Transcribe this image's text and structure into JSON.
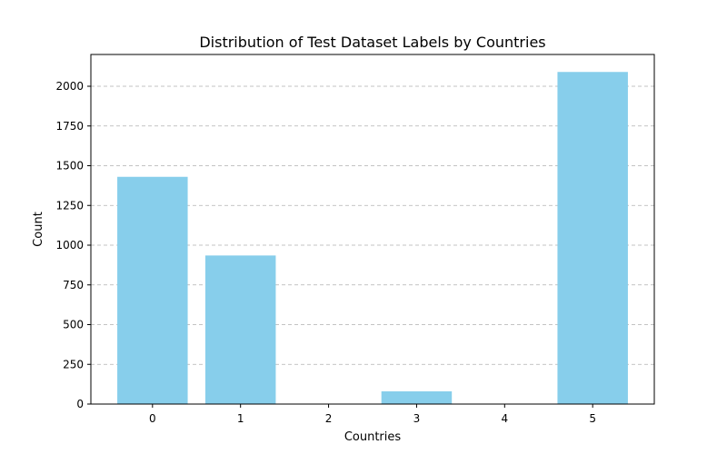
{
  "chart_data": {
    "type": "bar",
    "title": "Distribution of Test Dataset Labels by Countries",
    "xlabel": "Countries",
    "ylabel": "Count",
    "categories": [
      "0",
      "1",
      "2",
      "3",
      "4",
      "5"
    ],
    "values": [
      1430,
      935,
      0,
      80,
      0,
      2090
    ],
    "ylim": [
      0,
      2200
    ],
    "yticks": [
      0,
      250,
      500,
      750,
      1000,
      1250,
      1500,
      1750,
      2000
    ],
    "grid": "y-dashed",
    "bar_color": "#87CEEB"
  }
}
